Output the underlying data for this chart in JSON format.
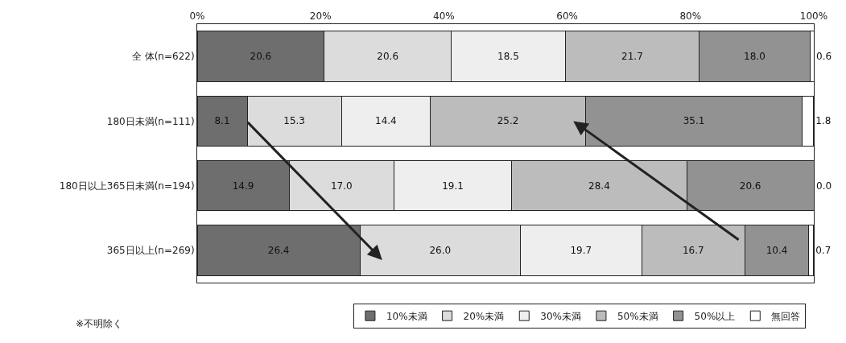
{
  "chart_data": {
    "type": "bar",
    "orientation": "horizontal",
    "stacked": true,
    "grid": false,
    "legend": "bottom",
    "categories": [
      "全 体(n=622)",
      "180日未満(n=111)",
      "180日以上365日未満(n=194)",
      "365日以上(n=269)"
    ],
    "series": [
      {
        "name": "10%未満",
        "color": "#6e6e6e",
        "values": [
          20.6,
          8.1,
          14.9,
          26.4
        ],
        "value_labels": [
          "20.6",
          "8.1",
          "14.9",
          "26.4"
        ]
      },
      {
        "name": "20%未満",
        "color": "#dcdcdc",
        "values": [
          20.6,
          15.3,
          17.0,
          26.0
        ],
        "value_labels": [
          "20.6",
          "15.3",
          "17.0",
          "26.0"
        ]
      },
      {
        "name": "30%未満",
        "color": "#eeeeee",
        "values": [
          18.5,
          14.4,
          19.1,
          19.7
        ],
        "value_labels": [
          "18.5",
          "14.4",
          "19.1",
          "19.7"
        ]
      },
      {
        "name": "50%未満",
        "color": "#bcbcbc",
        "values": [
          21.7,
          25.2,
          28.4,
          16.7
        ],
        "value_labels": [
          "21.7",
          "25.2",
          "28.4",
          "16.7"
        ]
      },
      {
        "name": "50%以上",
        "color": "#929292",
        "values": [
          18.0,
          35.1,
          20.6,
          10.4
        ],
        "value_labels": [
          "18.0",
          "35.1",
          "20.6",
          "10.4"
        ]
      },
      {
        "name": "無回答",
        "color": "#ffffff",
        "values": [
          0.6,
          1.8,
          0.0,
          0.7
        ],
        "value_labels": [
          "0.6",
          "1.8",
          "0.0",
          "0.7"
        ]
      }
    ],
    "xlim": [
      0,
      100
    ],
    "xticks": [
      {
        "value": 0,
        "label": "0%"
      },
      {
        "value": 20,
        "label": "20%"
      },
      {
        "value": 40,
        "label": "40%"
      },
      {
        "value": 60,
        "label": "60%"
      },
      {
        "value": 80,
        "label": "80%"
      },
      {
        "value": 100,
        "label": "100%"
      }
    ],
    "annotations": [
      "※不明除く"
    ]
  }
}
